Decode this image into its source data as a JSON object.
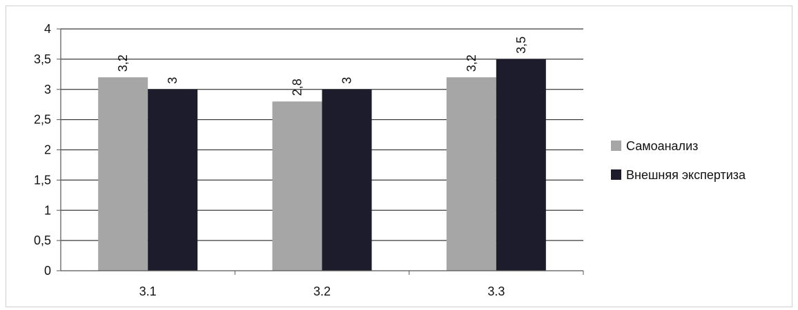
{
  "chart_data": {
    "type": "bar",
    "categories": [
      "3.1",
      "3.2",
      "3.3"
    ],
    "series": [
      {
        "name": "Самоанализ",
        "values": [
          3.2,
          2.8,
          3.2
        ],
        "labels": [
          "3,2",
          "2,8",
          "3,2"
        ],
        "color": "#a6a6a6"
      },
      {
        "name": "Внешняя экспертиза",
        "values": [
          3.0,
          3.0,
          3.5
        ],
        "labels": [
          "3",
          "3",
          "3,5"
        ],
        "color": "#1c1c2c"
      }
    ],
    "ylim": [
      0,
      4
    ],
    "y_ticks": [
      "0",
      "0,5",
      "1",
      "1,5",
      "2",
      "2,5",
      "3",
      "3,5",
      "4"
    ],
    "grid": true,
    "legend_position": "right"
  }
}
